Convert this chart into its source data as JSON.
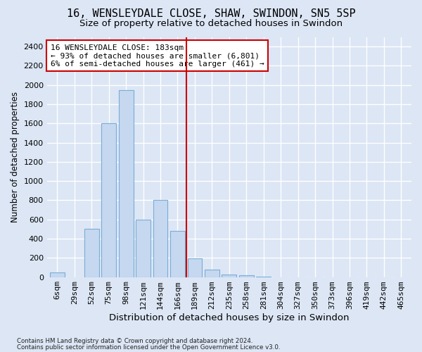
{
  "title": "16, WENSLEYDALE CLOSE, SHAW, SWINDON, SN5 5SP",
  "subtitle": "Size of property relative to detached houses in Swindon",
  "xlabel": "Distribution of detached houses by size in Swindon",
  "ylabel": "Number of detached properties",
  "bar_color": "#c5d8f0",
  "bar_edge_color": "#7aadd4",
  "categories": [
    "6sqm",
    "29sqm",
    "52sqm",
    "75sqm",
    "98sqm",
    "121sqm",
    "144sqm",
    "166sqm",
    "189sqm",
    "212sqm",
    "235sqm",
    "258sqm",
    "281sqm",
    "304sqm",
    "327sqm",
    "350sqm",
    "373sqm",
    "396sqm",
    "419sqm",
    "442sqm",
    "465sqm"
  ],
  "values": [
    50,
    0,
    500,
    1600,
    1950,
    600,
    800,
    480,
    195,
    80,
    28,
    20,
    5,
    0,
    0,
    0,
    0,
    0,
    0,
    0,
    0
  ],
  "ylim": [
    0,
    2500
  ],
  "yticks": [
    0,
    200,
    400,
    600,
    800,
    1000,
    1200,
    1400,
    1600,
    1800,
    2000,
    2200,
    2400
  ],
  "property_line_x": 7.5,
  "annotation_title": "16 WENSLEYDALE CLOSE: 183sqm",
  "annotation_line2": "← 93% of detached houses are smaller (6,801)",
  "annotation_line3": "6% of semi-detached houses are larger (461) →",
  "annotation_box_color": "#ffffff",
  "annotation_box_edge_color": "#cc0000",
  "footer_line1": "Contains HM Land Registry data © Crown copyright and database right 2024.",
  "footer_line2": "Contains public sector information licensed under the Open Government Licence v3.0.",
  "background_color": "#dce6f5",
  "plot_background_color": "#dce6f5",
  "grid_color": "#ffffff",
  "title_fontsize": 11,
  "subtitle_fontsize": 9.5,
  "xlabel_fontsize": 9.5,
  "ylabel_fontsize": 8.5,
  "tick_fontsize": 8,
  "annotation_fontsize": 8
}
